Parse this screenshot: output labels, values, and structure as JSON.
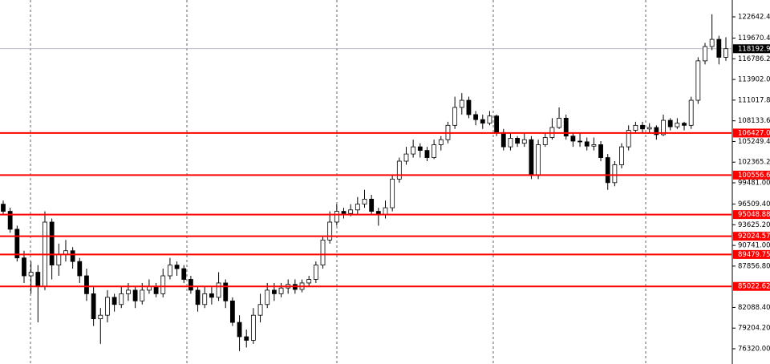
{
  "chart_data": {
    "type": "candlestick",
    "ylim": [
      74194,
      124992
    ],
    "yticks": [
      {
        "value": 122642.4,
        "label": "122642.40"
      },
      {
        "value": 119670.4,
        "label": "119670.40"
      },
      {
        "value": 116786.2,
        "label": "116786.20"
      },
      {
        "value": 113902,
        "label": "113902.00"
      },
      {
        "value": 111017.8,
        "label": "111017.80"
      },
      {
        "value": 108133.6,
        "label": "108133.60"
      },
      {
        "value": 105249.4,
        "label": "105249.40"
      },
      {
        "value": 102365.2,
        "label": "102365.20"
      },
      {
        "value": 99481,
        "label": "99481.00"
      },
      {
        "value": 96509.4,
        "label": "96509.40"
      },
      {
        "value": 93625.2,
        "label": "93625.20"
      },
      {
        "value": 90741,
        "label": "90741.00"
      },
      {
        "value": 87856.8,
        "label": "87856.80"
      },
      {
        "value": 82088.4,
        "label": "82088.40"
      },
      {
        "value": 79204.2,
        "label": "79204.20"
      },
      {
        "value": 76320,
        "label": "76320.00"
      }
    ],
    "up_color": "#ffffff",
    "down_color": "#000000",
    "level_color": "#ff0000",
    "levels": [
      106427.01,
      100556.68,
      95048.88,
      92024.57,
      89479.75,
      85022.62
    ],
    "current_price": 118192.99,
    "candles": [
      [
        96500,
        97000,
        95000,
        95500
      ],
      [
        95500,
        96000,
        92500,
        93000
      ],
      [
        93000,
        93500,
        88500,
        89000
      ],
      [
        89000,
        90000,
        85500,
        86500
      ],
      [
        86500,
        88500,
        84000,
        87000
      ],
      [
        87000,
        88000,
        80000,
        85000
      ],
      [
        85000,
        95500,
        84500,
        94000
      ],
      [
        94000,
        94500,
        86000,
        88000
      ],
      [
        88000,
        91000,
        86500,
        89500
      ],
      [
        89500,
        91500,
        88500,
        90000
      ],
      [
        90000,
        90500,
        87500,
        88500
      ],
      [
        88500,
        89000,
        85500,
        86500
      ],
      [
        86500,
        87500,
        83000,
        84000
      ],
      [
        84000,
        85000,
        79500,
        80500
      ],
      [
        80500,
        82000,
        77000,
        81000
      ],
      [
        81000,
        84500,
        80000,
        83500
      ],
      [
        83500,
        84000,
        81500,
        82500
      ],
      [
        82500,
        85000,
        82000,
        84000
      ],
      [
        84000,
        85500,
        83000,
        84500
      ],
      [
        84500,
        85000,
        82000,
        83000
      ],
      [
        83000,
        85500,
        82500,
        84500
      ],
      [
        84500,
        86000,
        84000,
        85000
      ],
      [
        85000,
        85500,
        83500,
        84000
      ],
      [
        84000,
        87500,
        83500,
        86500
      ],
      [
        86500,
        89000,
        86000,
        88000
      ],
      [
        88000,
        88500,
        86500,
        87500
      ],
      [
        87500,
        88000,
        85500,
        86000
      ],
      [
        86000,
        86500,
        84000,
        84500
      ],
      [
        84500,
        85000,
        81500,
        82500
      ],
      [
        82500,
        85000,
        82000,
        84000
      ],
      [
        84000,
        85000,
        82500,
        83500
      ],
      [
        83500,
        87000,
        83000,
        85500
      ],
      [
        85500,
        86000,
        82000,
        83000
      ],
      [
        83000,
        83500,
        79500,
        80000
      ],
      [
        80000,
        81000,
        76000,
        78000
      ],
      [
        78000,
        79000,
        76500,
        77500
      ],
      [
        77500,
        82000,
        77000,
        81000
      ],
      [
        81000,
        84000,
        80000,
        82500
      ],
      [
        82500,
        85500,
        82000,
        84500
      ],
      [
        84500,
        85500,
        83000,
        84000
      ],
      [
        84000,
        85500,
        83500,
        84800
      ],
      [
        84800,
        86000,
        84000,
        85300
      ],
      [
        85300,
        86000,
        84000,
        84600
      ],
      [
        84600,
        86000,
        84200,
        85500
      ],
      [
        85500,
        86500,
        85000,
        86000
      ],
      [
        86000,
        88500,
        85500,
        88000
      ],
      [
        88000,
        92000,
        87500,
        91500
      ],
      [
        91500,
        95500,
        91000,
        94000
      ],
      [
        94000,
        96500,
        93500,
        95500
      ],
      [
        95500,
        96000,
        94500,
        95200
      ],
      [
        95200,
        96500,
        94800,
        95700
      ],
      [
        95700,
        97500,
        95000,
        96500
      ],
      [
        96500,
        98500,
        96000,
        97200
      ],
      [
        97200,
        97800,
        95000,
        95500
      ],
      [
        95500,
        96000,
        93500,
        95000
      ],
      [
        95000,
        97000,
        94500,
        96000
      ],
      [
        96000,
        100500,
        95500,
        100000
      ],
      [
        100000,
        103000,
        99500,
        102500
      ],
      [
        102500,
        104500,
        102000,
        103500
      ],
      [
        103500,
        105500,
        103000,
        104500
      ],
      [
        104500,
        105000,
        103000,
        104000
      ],
      [
        104000,
        104500,
        102500,
        103000
      ],
      [
        103000,
        105500,
        102800,
        104800
      ],
      [
        104800,
        106000,
        104000,
        105500
      ],
      [
        105500,
        108000,
        105000,
        107500
      ],
      [
        107500,
        111500,
        107000,
        110000
      ],
      [
        110000,
        112000,
        109000,
        111000
      ],
      [
        111000,
        111500,
        108500,
        109000
      ],
      [
        109000,
        109500,
        107500,
        108300
      ],
      [
        108300,
        109000,
        107000,
        107800
      ],
      [
        107800,
        109500,
        107500,
        108800
      ],
      [
        108800,
        109000,
        106000,
        106500
      ],
      [
        106500,
        107000,
        104000,
        104500
      ],
      [
        104500,
        106500,
        104000,
        105700
      ],
      [
        105700,
        106000,
        104500,
        105000
      ],
      [
        105000,
        106500,
        104500,
        105500
      ],
      [
        105500,
        106000,
        100000,
        100500
      ],
      [
        100500,
        105500,
        100000,
        104800
      ],
      [
        104800,
        106500,
        104500,
        105800
      ],
      [
        105800,
        108500,
        105500,
        107200
      ],
      [
        107200,
        110000,
        107000,
        108500
      ],
      [
        108500,
        109000,
        105500,
        106000
      ],
      [
        106000,
        106500,
        104500,
        105300
      ],
      [
        105300,
        106500,
        104500,
        105200
      ],
      [
        105200,
        105800,
        104000,
        104600
      ],
      [
        104600,
        105800,
        104000,
        104800
      ],
      [
        104800,
        105300,
        102500,
        103000
      ],
      [
        103000,
        103500,
        98500,
        99500
      ],
      [
        99500,
        102500,
        99000,
        102000
      ],
      [
        102000,
        105000,
        101500,
        104500
      ],
      [
        104500,
        107500,
        104000,
        106800
      ],
      [
        106800,
        108000,
        106500,
        107500
      ],
      [
        107500,
        108000,
        106500,
        107000
      ],
      [
        107000,
        107800,
        106500,
        107200
      ],
      [
        107200,
        107500,
        105500,
        106200
      ],
      [
        106200,
        109000,
        106000,
        108200
      ],
      [
        108200,
        108500,
        106800,
        107300
      ],
      [
        107300,
        108500,
        107000,
        107800
      ],
      [
        107800,
        108000,
        106800,
        107500
      ],
      [
        107500,
        111500,
        107000,
        111000
      ],
      [
        111000,
        117000,
        110500,
        116500
      ],
      [
        116500,
        119000,
        116000,
        118500
      ],
      [
        118500,
        123000,
        118000,
        119500
      ],
      [
        119500,
        120000,
        116000,
        117000
      ],
      [
        117000,
        119800,
        116500,
        118200
      ]
    ]
  }
}
